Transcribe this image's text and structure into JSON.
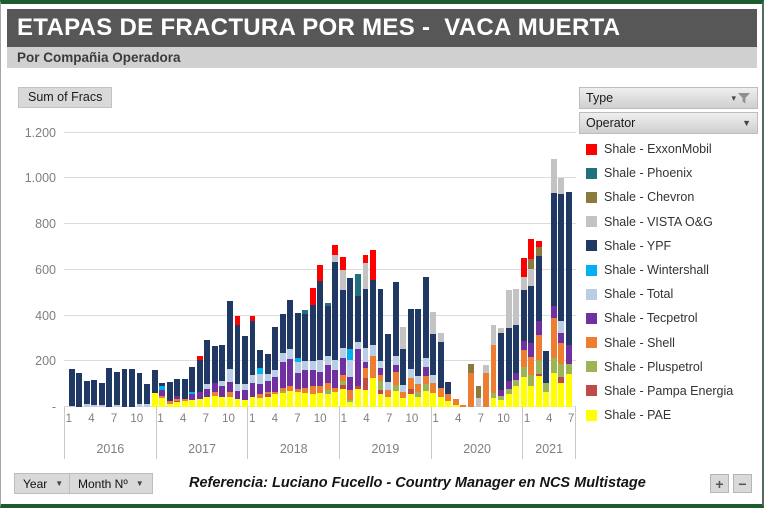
{
  "header": {
    "title": "ETAPAS DE FRACTURA POR MES -  VACA MUERTA",
    "subtitle": "Por Compañia Operadora"
  },
  "controls": {
    "sum_of_fracs": "Sum of Fracs",
    "type_label": "Type",
    "operator_label": "Operator",
    "year_label": "Year",
    "month_label": "Month Nº",
    "zoom_in": "+",
    "zoom_out": "−"
  },
  "footer": {
    "reference": "Referencia: Luciano Fucello - Country Manager en NCS Multistage"
  },
  "chart_data": {
    "type": "bar",
    "stacked": true,
    "title": "ETAPAS DE FRACTURA POR MES -  VACA MUERTA",
    "ylabel": "Sum of Fracs",
    "xlabel": "Year / Month Nº",
    "ylim": [
      0,
      1200
    ],
    "grid": true,
    "legend_position": "right",
    "y_ticks": [
      {
        "label": "1.200",
        "value": 1200
      },
      {
        "label": "1.000",
        "value": 1000
      },
      {
        "label": "800",
        "value": 800
      },
      {
        "label": "600",
        "value": 600
      },
      {
        "label": "400",
        "value": 400
      },
      {
        "label": "200",
        "value": 200
      },
      {
        "label": "-",
        "value": 0
      }
    ],
    "x_tick_months": [
      1,
      4,
      7,
      10
    ],
    "series": [
      {
        "id": "exxon",
        "label": "Shale - ExxonMobil",
        "color": "#FE0000"
      },
      {
        "id": "phoenix",
        "label": "Shale - Phoenix",
        "color": "#21707E"
      },
      {
        "id": "chevron",
        "label": "Shale - Chevron",
        "color": "#8B7A3D"
      },
      {
        "id": "vista",
        "label": "Shale - VISTA O&G",
        "color": "#C3C3C3"
      },
      {
        "id": "ypf",
        "label": "Shale - YPF",
        "color": "#1F3864"
      },
      {
        "id": "wintershall",
        "label": "Shale - Wintershall",
        "color": "#00B0F0"
      },
      {
        "id": "total",
        "label": "Shale - Total",
        "color": "#B9CDE5"
      },
      {
        "id": "tecpetrol",
        "label": "Shale - Tecpetrol",
        "color": "#7030A0"
      },
      {
        "id": "shell",
        "label": "Shale - Shell",
        "color": "#ED7D31"
      },
      {
        "id": "pluspetrol",
        "label": "Shale - Pluspetrol",
        "color": "#9CB454"
      },
      {
        "id": "pampa",
        "label": "Shale - Pampa Energia",
        "color": "#BE4B48"
      },
      {
        "id": "pae",
        "label": "Shale - PAE",
        "color": "#FFFF00"
      }
    ],
    "months": [
      {
        "year": 2016,
        "month": 1,
        "values": {
          "total": 5,
          "ypf": 160
        }
      },
      {
        "year": 2016,
        "month": 2,
        "values": {
          "ypf": 150
        }
      },
      {
        "year": 2016,
        "month": 3,
        "values": {
          "total": 12,
          "ypf": 103
        }
      },
      {
        "year": 2016,
        "month": 4,
        "values": {
          "total": 10,
          "ypf": 110
        }
      },
      {
        "year": 2016,
        "month": 5,
        "values": {
          "total": 10,
          "ypf": 95
        }
      },
      {
        "year": 2016,
        "month": 6,
        "values": {
          "ypf": 170
        }
      },
      {
        "year": 2016,
        "month": 7,
        "values": {
          "total": 8,
          "ypf": 147
        }
      },
      {
        "year": 2016,
        "month": 8,
        "values": {
          "ypf": 165
        }
      },
      {
        "year": 2016,
        "month": 9,
        "values": {
          "ypf": 165
        }
      },
      {
        "year": 2016,
        "month": 10,
        "values": {
          "total": 12,
          "ypf": 136
        }
      },
      {
        "year": 2016,
        "month": 11,
        "values": {
          "total": 15,
          "ypf": 85
        }
      },
      {
        "year": 2016,
        "month": 12,
        "values": {
          "pae": 60,
          "ypf": 100
        }
      },
      {
        "year": 2017,
        "month": 1,
        "values": {
          "pae": 40,
          "shell": 8,
          "tecpetrol": 27,
          "wintershall": 15,
          "ypf": 13
        }
      },
      {
        "year": 2017,
        "month": 2,
        "values": {
          "pae": 15,
          "shell": 10,
          "ypf": 85
        }
      },
      {
        "year": 2017,
        "month": 3,
        "values": {
          "pae": 20,
          "pampa": 5,
          "shell": 8,
          "tecpetrol": 15,
          "ypf": 74
        }
      },
      {
        "year": 2017,
        "month": 4,
        "values": {
          "pae": 25,
          "shell": 10,
          "ypf": 87
        }
      },
      {
        "year": 2017,
        "month": 5,
        "values": {
          "pae": 30,
          "tecpetrol": 25,
          "wintershall": 12,
          "ypf": 108
        }
      },
      {
        "year": 2017,
        "month": 6,
        "values": {
          "pae": 35,
          "tecpetrol": 30,
          "ypf": 140,
          "exxon": 20
        }
      },
      {
        "year": 2017,
        "month": 7,
        "values": {
          "pae": 45,
          "tecpetrol": 35,
          "total": 20,
          "ypf": 195
        }
      },
      {
        "year": 2017,
        "month": 8,
        "values": {
          "pae": 50,
          "shell": 15,
          "tecpetrol": 40,
          "ypf": 160
        }
      },
      {
        "year": 2017,
        "month": 9,
        "values": {
          "pae": 45,
          "tecpetrol": 45,
          "total": 25,
          "ypf": 155
        }
      },
      {
        "year": 2017,
        "month": 10,
        "values": {
          "pae": 45,
          "shell": 20,
          "tecpetrol": 45,
          "total": 55,
          "ypf": 300
        }
      },
      {
        "year": 2017,
        "month": 11,
        "values": {
          "pae": 35,
          "tecpetrol": 35,
          "total": 30,
          "ypf": 260,
          "exxon": 40
        }
      },
      {
        "year": 2017,
        "month": 12,
        "values": {
          "pae": 30,
          "tecpetrol": 45,
          "total": 25,
          "ypf": 210
        }
      },
      {
        "year": 2018,
        "month": 1,
        "values": {
          "pae": 45,
          "tecpetrol": 60,
          "total": 35,
          "ypf": 235,
          "exxon": 25
        }
      },
      {
        "year": 2018,
        "month": 2,
        "values": {
          "pae": 40,
          "shell": 15,
          "tecpetrol": 45,
          "total": 45,
          "wintershall": 25,
          "ypf": 80
        }
      },
      {
        "year": 2018,
        "month": 3,
        "values": {
          "pae": 45,
          "pampa": 10,
          "shell": 10,
          "tecpetrol": 50,
          "total": 30,
          "ypf": 85
        }
      },
      {
        "year": 2018,
        "month": 4,
        "values": {
          "pae": 55,
          "shell": 10,
          "tecpetrol": 65,
          "total": 30,
          "ypf": 190
        }
      },
      {
        "year": 2018,
        "month": 5,
        "values": {
          "pae": 60,
          "pluspetrol": 10,
          "shell": 15,
          "tecpetrol": 110,
          "total": 40,
          "ypf": 170
        }
      },
      {
        "year": 2018,
        "month": 6,
        "values": {
          "pae": 70,
          "shell": 20,
          "tecpetrol": 120,
          "total": 45,
          "ypf": 215
        }
      },
      {
        "year": 2018,
        "month": 7,
        "values": {
          "pae": 65,
          "shell": 15,
          "tecpetrol": 70,
          "total": 45,
          "wintershall": 20,
          "ypf": 195
        }
      },
      {
        "year": 2018,
        "month": 8,
        "values": {
          "pae": 60,
          "shell": 25,
          "tecpetrol": 75,
          "total": 40,
          "ypf": 205,
          "phoenix": 20
        }
      },
      {
        "year": 2018,
        "month": 9,
        "values": {
          "pae": 55,
          "shell": 35,
          "tecpetrol": 70,
          "total": 40,
          "ypf": 245,
          "exxon": 75
        }
      },
      {
        "year": 2018,
        "month": 10,
        "values": {
          "pae": 60,
          "shell": 30,
          "tecpetrol": 65,
          "total": 50,
          "ypf": 345,
          "exxon": 70
        }
      },
      {
        "year": 2018,
        "month": 11,
        "values": {
          "pae": 55,
          "pluspetrol": 20,
          "shell": 30,
          "tecpetrol": 80,
          "total": 40,
          "ypf": 215,
          "phoenix": 15
        }
      },
      {
        "year": 2018,
        "month": 12,
        "values": {
          "pae": 65,
          "shell": 20,
          "tecpetrol": 75,
          "total": 45,
          "ypf": 430,
          "vista": 30,
          "exxon": 45
        }
      },
      {
        "year": 2019,
        "month": 1,
        "values": {
          "pae": 80,
          "pampa": 15,
          "pluspetrol": 20,
          "shell": 25,
          "tecpetrol": 75,
          "total": 45,
          "ypf": 250,
          "vista": 90,
          "exxon": 55
        }
      },
      {
        "year": 2019,
        "month": 2,
        "values": {
          "pae": 20,
          "pluspetrol": 10,
          "shell": 45,
          "tecpetrol": 55,
          "total": 75,
          "wintershall": 50,
          "ypf": 310
        }
      },
      {
        "year": 2019,
        "month": 3,
        "values": {
          "pae": 80,
          "pampa": 10,
          "tecpetrol": 165,
          "total": 30,
          "ypf": 200,
          "phoenix": 95
        }
      },
      {
        "year": 2019,
        "month": 4,
        "values": {
          "pae": 75,
          "pampa": 50,
          "shell": 45,
          "tecpetrol": 25,
          "total": 65,
          "ypf": 255,
          "vista": 115,
          "exxon": 35
        }
      },
      {
        "year": 2019,
        "month": 5,
        "values": {
          "pae": 125,
          "shell": 100,
          "total": 45,
          "ypf": 285,
          "exxon": 130
        }
      },
      {
        "year": 2019,
        "month": 6,
        "values": {
          "pae": 55,
          "pampa": 20,
          "pluspetrol": 40,
          "shell": 25,
          "tecpetrol": 30,
          "total": 30,
          "ypf": 315
        }
      },
      {
        "year": 2019,
        "month": 7,
        "values": {
          "pae": 45,
          "shell": 30,
          "total": 35,
          "ypf": 210
        }
      },
      {
        "year": 2019,
        "month": 8,
        "values": {
          "pae": 70,
          "pluspetrol": 25,
          "shell": 60,
          "tecpetrol": 30,
          "total": 40,
          "ypf": 320
        }
      },
      {
        "year": 2019,
        "month": 9,
        "values": {
          "pae": 40,
          "shell": 25,
          "total": 30,
          "ypf": 160,
          "vista": 95
        }
      },
      {
        "year": 2019,
        "month": 10,
        "values": {
          "pae": 55,
          "pampa": 25,
          "shell": 45,
          "total": 40,
          "ypf": 265
        }
      },
      {
        "year": 2019,
        "month": 11,
        "values": {
          "pae": 45,
          "pluspetrol": 20,
          "shell": 35,
          "total": 35,
          "ypf": 295
        }
      },
      {
        "year": 2019,
        "month": 12,
        "values": {
          "pae": 70,
          "pluspetrol": 30,
          "shell": 35,
          "tecpetrol": 40,
          "total": 40,
          "ypf": 355
        }
      },
      {
        "year": 2020,
        "month": 1,
        "values": {
          "pae": 60,
          "shell": 45,
          "total": 35,
          "ypf": 180,
          "vista": 95
        }
      },
      {
        "year": 2020,
        "month": 2,
        "values": {
          "pae": 45,
          "shell": 40,
          "ypf": 200,
          "vista": 40
        }
      },
      {
        "year": 2020,
        "month": 3,
        "values": {
          "pae": 25,
          "shell": 30,
          "ypf": 55
        }
      },
      {
        "year": 2020,
        "month": 4,
        "values": {
          "pae": 8,
          "shell": 25
        }
      },
      {
        "year": 2020,
        "month": 5,
        "values": {
          "shell": 8
        }
      },
      {
        "year": 2020,
        "month": 6,
        "values": {
          "shell": 150,
          "chevron": 40
        }
      },
      {
        "year": 2020,
        "month": 7,
        "values": {
          "chevron": 50,
          "vista": 40
        }
      },
      {
        "year": 2020,
        "month": 8,
        "values": {
          "shell": 150,
          "vista": 35
        }
      },
      {
        "year": 2020,
        "month": 9,
        "values": {
          "pae": 40,
          "pluspetrol": 20,
          "shell": 210,
          "vista": 90
        }
      },
      {
        "year": 2020,
        "month": 10,
        "values": {
          "pae": 30,
          "pluspetrol": 20,
          "tecpetrol": 25,
          "ypf": 250,
          "vista": 20
        }
      },
      {
        "year": 2020,
        "month": 11,
        "values": {
          "pae": 55,
          "pluspetrol": 25,
          "tecpetrol": 35,
          "ypf": 230,
          "vista": 165
        }
      },
      {
        "year": 2020,
        "month": 12,
        "values": {
          "pae": 90,
          "pluspetrol": 30,
          "tecpetrol": 30,
          "ypf": 210,
          "vista": 155
        }
      },
      {
        "year": 2021,
        "month": 1,
        "values": {
          "pae": 130,
          "pluspetrol": 45,
          "shell": 75,
          "tecpetrol": 40,
          "ypf": 220,
          "vista": 60,
          "exxon": 82
        }
      },
      {
        "year": 2021,
        "month": 2,
        "values": {
          "pae": 90,
          "pluspetrol": 50,
          "shell": 80,
          "tecpetrol": 60,
          "ypf": 250,
          "vista": 75,
          "chevron": 40,
          "exxon": 90
        }
      },
      {
        "year": 2021,
        "month": 3,
        "values": {
          "pae": 135,
          "pampa": 10,
          "pluspetrol": 60,
          "shell": 110,
          "tecpetrol": 60,
          "ypf": 285,
          "chevron": 40,
          "exxon": 25
        }
      },
      {
        "year": 2021,
        "month": 4,
        "values": {
          "pae": 65,
          "pluspetrol": 40,
          "ypf": 140
        }
      },
      {
        "year": 2021,
        "month": 5,
        "values": {
          "pae": 150,
          "pluspetrol": 65,
          "shell": 175,
          "tecpetrol": 50,
          "ypf": 495,
          "vista": 150
        }
      },
      {
        "year": 2021,
        "month": 6,
        "values": {
          "pae": 105,
          "pampa": 25,
          "pluspetrol": 60,
          "shell": 90,
          "tecpetrol": 45,
          "total": 50,
          "ypf": 555,
          "vista": 70
        }
      },
      {
        "year": 2021,
        "month": 7,
        "values": {
          "pae": 145,
          "pluspetrol": 45,
          "tecpetrol": 80,
          "ypf": 670
        }
      }
    ]
  }
}
